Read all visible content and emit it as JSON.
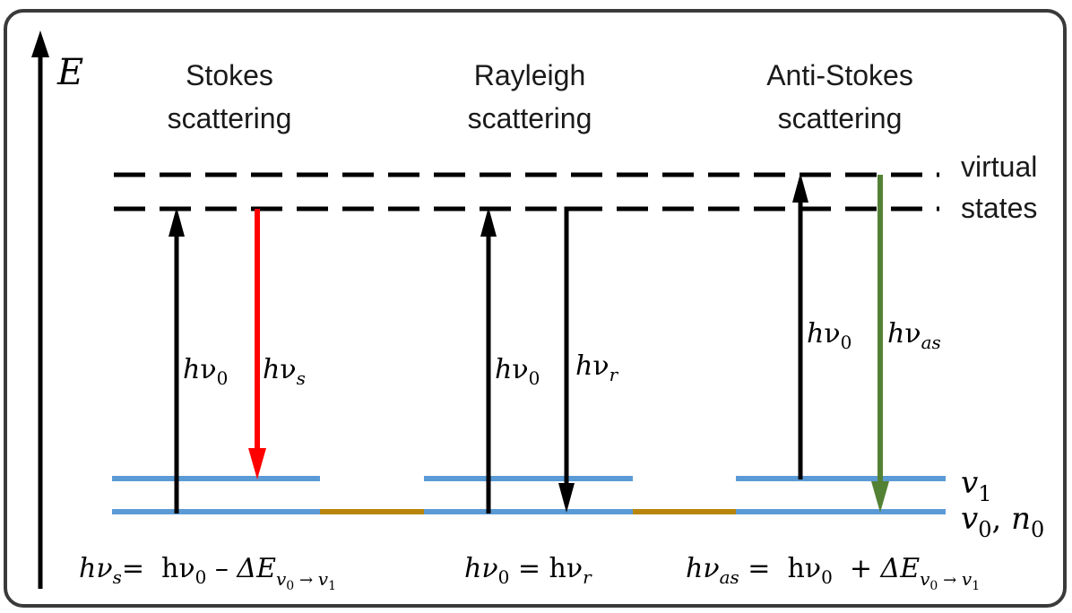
{
  "axis": {
    "label": "E"
  },
  "headings": {
    "stokes": [
      "Stokes",
      "scattering"
    ],
    "rayleigh": [
      "Rayleigh",
      "scattering"
    ],
    "anti_stokes": [
      "Anti-Stokes",
      "scattering"
    ]
  },
  "state_labels": {
    "virtual": [
      "virtual",
      "states"
    ],
    "v1": "v",
    "v1_sub": "1",
    "v0": "v",
    "v0_sub": "0",
    "n0": "n",
    "n0_sub": "0"
  },
  "arrow_labels": {
    "h": "h",
    "nu": "ν",
    "sub_0": "0",
    "sub_s": "s",
    "sub_r": "r",
    "sub_as": "as"
  },
  "equations": {
    "stokes": {
      "lhs": "hν",
      "lhs_sub": "s",
      "mid": "=  hν",
      "mid_sub": "0",
      "op": " – ΔE",
      "delta_sub": "v",
      "delta_sub_sub": "0",
      "arrow": " → ",
      "to": "v",
      "to_sub": "1"
    },
    "rayleigh": {
      "lhs": "hν",
      "lhs_sub": "0",
      "mid": " = hν",
      "mid_sub": "r"
    },
    "anti_stokes": {
      "lhs": "hν",
      "lhs_sub": "as",
      "mid": " =  hν",
      "mid_sub": "0",
      "op": "  + ΔE",
      "delta_sub": "v",
      "delta_sub_sub": "0",
      "arrow": " → ",
      "to": "v",
      "to_sub": "1"
    }
  },
  "colors": {
    "level_blue": "#5b9bd5",
    "connector_gold": "#b8860b",
    "stokes_arrow": "#ff0000",
    "anti_stokes_arrow": "#548235",
    "black": "#000000"
  }
}
